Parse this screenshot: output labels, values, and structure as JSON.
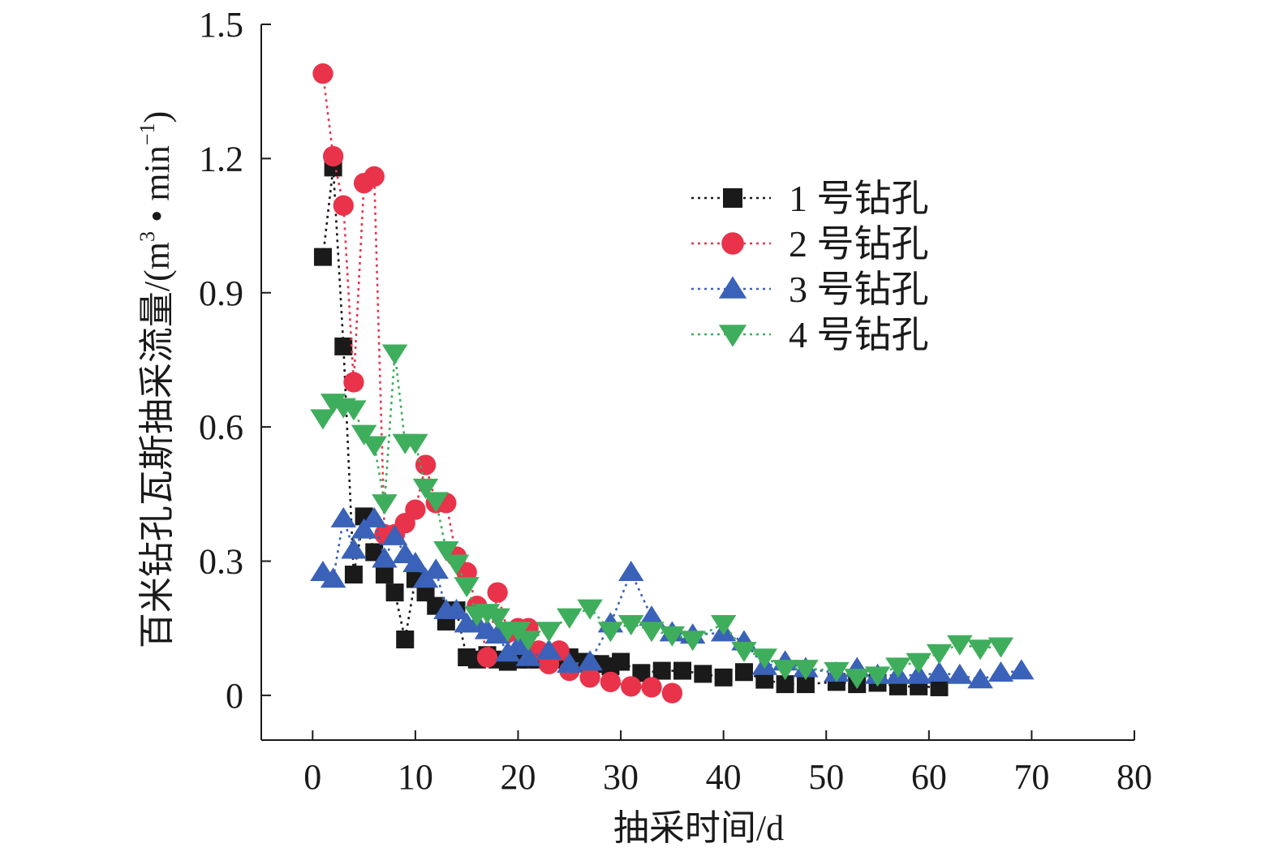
{
  "chart_data": {
    "type": "scatter",
    "xlabel": "抽采时间/d",
    "ylabel": "百米钻孔瓦斯抽采流量/(m",
    "ylabel_sup": "3",
    "ylabel_mid": " • min",
    "ylabel_sup2": "−1",
    "ylabel_end": ")",
    "xlim": [
      -5,
      80
    ],
    "ylim": [
      -0.1,
      1.5
    ],
    "x_ticks": [
      0,
      10,
      20,
      30,
      40,
      50,
      60,
      70,
      80
    ],
    "x_tick_labels": [
      "0",
      "10",
      "20",
      "30",
      "40",
      "50",
      "60",
      "70",
      "80"
    ],
    "y_ticks": [
      0,
      0.3,
      0.6,
      0.9,
      1.2,
      1.5
    ],
    "y_tick_labels": [
      "0",
      "0.3",
      "0.6",
      "0.9",
      "1.2",
      "1.5"
    ],
    "legend_position": "top-right",
    "series": [
      {
        "name": "1 号钻孔",
        "color": "#1a1a1a",
        "marker": "square",
        "points": [
          [
            1,
            0.98
          ],
          [
            2,
            1.18
          ],
          [
            3,
            0.78
          ],
          [
            4,
            0.27
          ],
          [
            5,
            0.4
          ],
          [
            6,
            0.32
          ],
          [
            7,
            0.27
          ],
          [
            8,
            0.23
          ],
          [
            9,
            0.125
          ],
          [
            10,
            0.26
          ],
          [
            11,
            0.23
          ],
          [
            12,
            0.2
          ],
          [
            13,
            0.165
          ],
          [
            14,
            0.19
          ],
          [
            15,
            0.085
          ],
          [
            16,
            0.08
          ],
          [
            17,
            0.09
          ],
          [
            18,
            0.08
          ],
          [
            19,
            0.075
          ],
          [
            20,
            0.08
          ],
          [
            21,
            0.08
          ],
          [
            22,
            0.08
          ],
          [
            23,
            0.085
          ],
          [
            24,
            0.08
          ],
          [
            25,
            0.085
          ],
          [
            26,
            0.075
          ],
          [
            27,
            0.07
          ],
          [
            28,
            0.07
          ],
          [
            29,
            0.065
          ],
          [
            30,
            0.075
          ],
          [
            32,
            0.05
          ],
          [
            34,
            0.055
          ],
          [
            36,
            0.055
          ],
          [
            38,
            0.048
          ],
          [
            40,
            0.04
          ],
          [
            42,
            0.052
          ],
          [
            44,
            0.035
          ],
          [
            46,
            0.025
          ],
          [
            48,
            0.025
          ],
          [
            51,
            0.03
          ],
          [
            53,
            0.025
          ],
          [
            55,
            0.028
          ],
          [
            57,
            0.02
          ],
          [
            59,
            0.02
          ],
          [
            61,
            0.018
          ]
        ]
      },
      {
        "name": "2 号钻孔",
        "color": "#e8334a",
        "marker": "circle",
        "points": [
          [
            1,
            1.39
          ],
          [
            2,
            1.205
          ],
          [
            3,
            1.095
          ],
          [
            4,
            0.7
          ],
          [
            5,
            1.145
          ],
          [
            6,
            1.16
          ],
          [
            7,
            0.36
          ],
          [
            8,
            0.36
          ],
          [
            9,
            0.385
          ],
          [
            10,
            0.415
          ],
          [
            11,
            0.515
          ],
          [
            12,
            0.43
          ],
          [
            13,
            0.43
          ],
          [
            14,
            0.31
          ],
          [
            15,
            0.275
          ],
          [
            16,
            0.2
          ],
          [
            17,
            0.085
          ],
          [
            18,
            0.23
          ],
          [
            19,
            0.14
          ],
          [
            20,
            0.15
          ],
          [
            21,
            0.15
          ],
          [
            22,
            0.1
          ],
          [
            23,
            0.07
          ],
          [
            24,
            0.1
          ],
          [
            25,
            0.055
          ],
          [
            27,
            0.04
          ],
          [
            29,
            0.03
          ],
          [
            31,
            0.02
          ],
          [
            33,
            0.018
          ],
          [
            35,
            0.005
          ]
        ]
      },
      {
        "name": "3 号钻孔",
        "color": "#3a62b9",
        "marker": "triangle-up",
        "points": [
          [
            1,
            0.275
          ],
          [
            2,
            0.26
          ],
          [
            3,
            0.395
          ],
          [
            4,
            0.325
          ],
          [
            5,
            0.37
          ],
          [
            6,
            0.395
          ],
          [
            7,
            0.305
          ],
          [
            8,
            0.355
          ],
          [
            9,
            0.315
          ],
          [
            10,
            0.295
          ],
          [
            11,
            0.26
          ],
          [
            12,
            0.28
          ],
          [
            13,
            0.19
          ],
          [
            14,
            0.19
          ],
          [
            15,
            0.16
          ],
          [
            16,
            0.16
          ],
          [
            17,
            0.145
          ],
          [
            18,
            0.135
          ],
          [
            19,
            0.095
          ],
          [
            20,
            0.11
          ],
          [
            21,
            0.085
          ],
          [
            23,
            0.1
          ],
          [
            25,
            0.07
          ],
          [
            27,
            0.075
          ],
          [
            29,
            0.16
          ],
          [
            31,
            0.275
          ],
          [
            33,
            0.175
          ],
          [
            35,
            0.14
          ],
          [
            37,
            0.135
          ],
          [
            40,
            0.14
          ],
          [
            42,
            0.12
          ],
          [
            44,
            0.065
          ],
          [
            46,
            0.075
          ],
          [
            48,
            0.06
          ],
          [
            51,
            0.05
          ],
          [
            53,
            0.06
          ],
          [
            55,
            0.045
          ],
          [
            57,
            0.045
          ],
          [
            59,
            0.045
          ],
          [
            61,
            0.05
          ],
          [
            63,
            0.045
          ],
          [
            65,
            0.035
          ],
          [
            67,
            0.05
          ],
          [
            69,
            0.055
          ]
        ]
      },
      {
        "name": "4 号钻孔",
        "color": "#3fae5c",
        "marker": "triangle-down",
        "points": [
          [
            1,
            0.62
          ],
          [
            2,
            0.655
          ],
          [
            3,
            0.645
          ],
          [
            4,
            0.64
          ],
          [
            5,
            0.585
          ],
          [
            6,
            0.56
          ],
          [
            7,
            0.43
          ],
          [
            8,
            0.765
          ],
          [
            9,
            0.565
          ],
          [
            10,
            0.565
          ],
          [
            11,
            0.465
          ],
          [
            12,
            0.435
          ],
          [
            13,
            0.325
          ],
          [
            14,
            0.295
          ],
          [
            15,
            0.245
          ],
          [
            16,
            0.18
          ],
          [
            17,
            0.185
          ],
          [
            18,
            0.175
          ],
          [
            19,
            0.145
          ],
          [
            20,
            0.145
          ],
          [
            21,
            0.125
          ],
          [
            23,
            0.145
          ],
          [
            25,
            0.175
          ],
          [
            27,
            0.195
          ],
          [
            29,
            0.145
          ],
          [
            31,
            0.16
          ],
          [
            33,
            0.145
          ],
          [
            35,
            0.135
          ],
          [
            37,
            0.125
          ],
          [
            40,
            0.16
          ],
          [
            42,
            0.1
          ],
          [
            44,
            0.085
          ],
          [
            46,
            0.06
          ],
          [
            48,
            0.06
          ],
          [
            51,
            0.055
          ],
          [
            53,
            0.04
          ],
          [
            55,
            0.045
          ],
          [
            57,
            0.065
          ],
          [
            59,
            0.075
          ],
          [
            61,
            0.095
          ],
          [
            63,
            0.115
          ],
          [
            65,
            0.105
          ],
          [
            67,
            0.11
          ]
        ]
      }
    ]
  }
}
